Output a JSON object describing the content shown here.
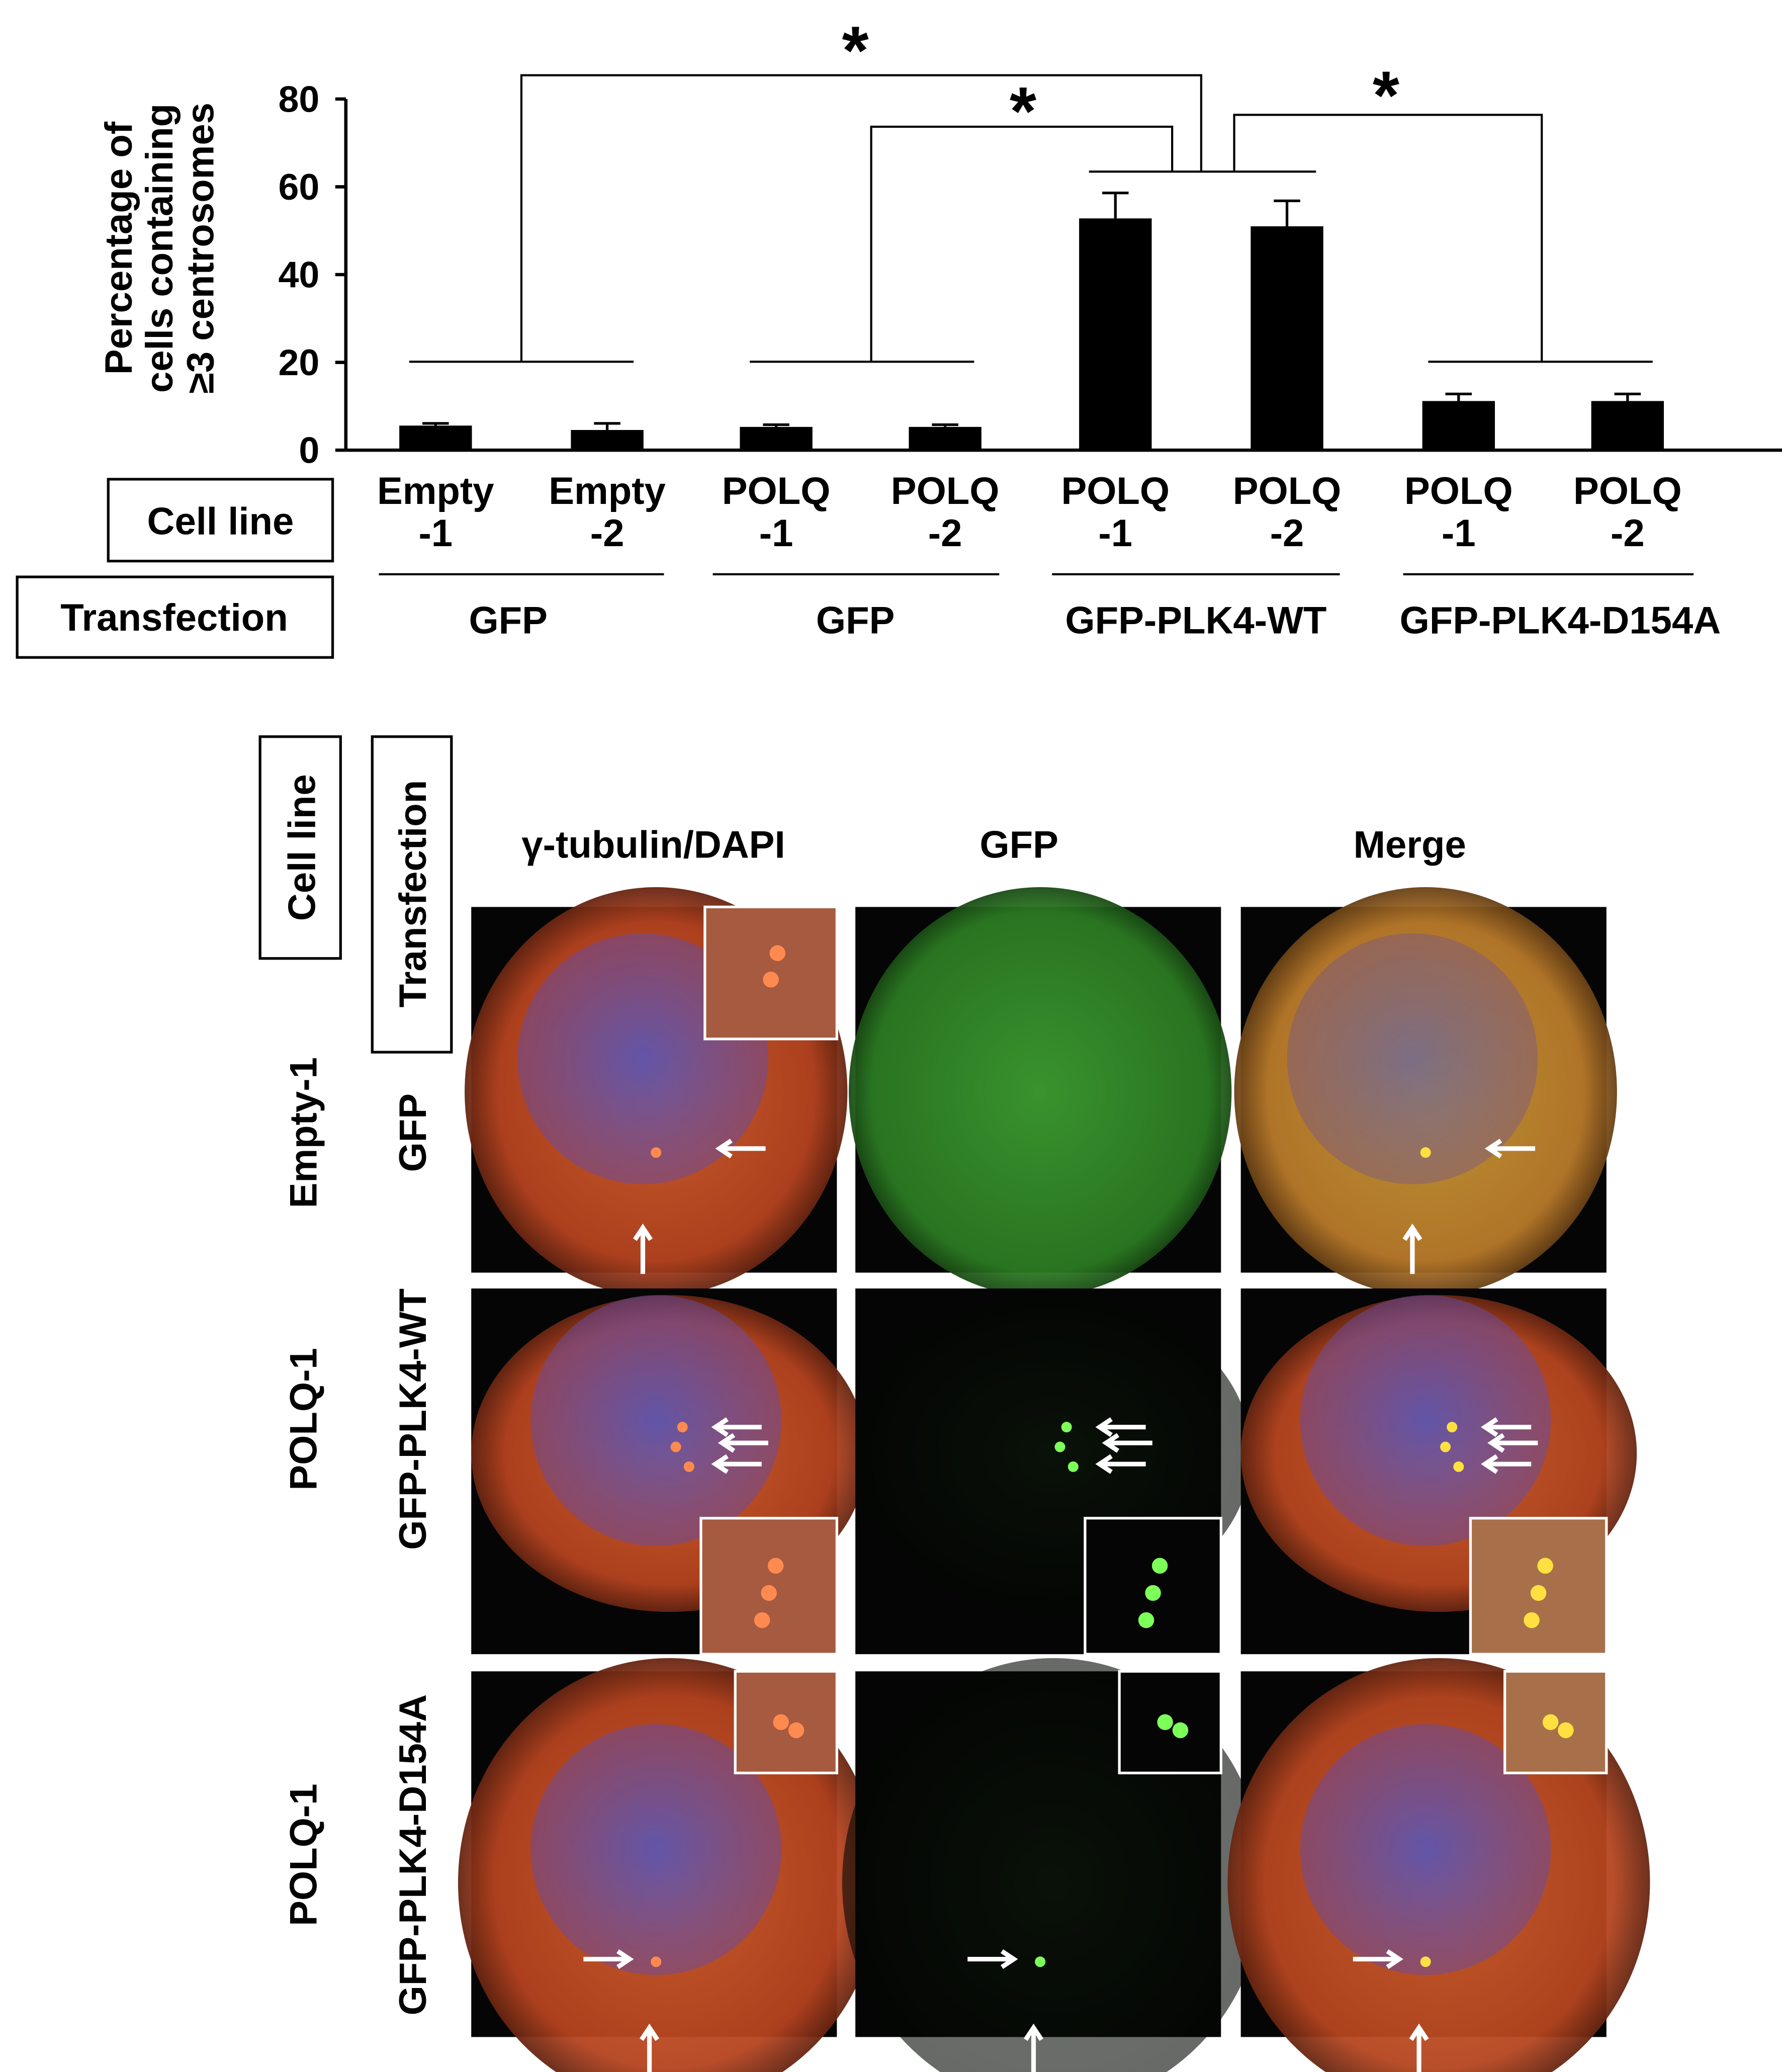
{
  "chart_data": {
    "type": "bar",
    "ylabel": [
      "Percentage of",
      "cells containing",
      "≥3 centrosomes"
    ],
    "categories": [
      [
        "Empty",
        "-1"
      ],
      [
        "Empty",
        "-2"
      ],
      [
        "POLQ",
        "-1"
      ],
      [
        "POLQ",
        "-2"
      ],
      [
        "POLQ",
        "-1"
      ],
      [
        "POLQ",
        "-2"
      ],
      [
        "POLQ",
        "-1"
      ],
      [
        "POLQ",
        "-2"
      ]
    ],
    "values": [
      5.6,
      4.6,
      5.3,
      5.3,
      52.8,
      51,
      11.2,
      11.2
    ],
    "errors": [
      0.5,
      1.5,
      0.5,
      0.5,
      5.8,
      5.8,
      1.6,
      1.6
    ],
    "color": "#000000",
    "ylim": [
      0,
      80
    ],
    "yticks": [
      0,
      20,
      40,
      60,
      80
    ],
    "annotations": [
      "*",
      "*",
      "*"
    ]
  },
  "table": {
    "row_headers": [
      "Cell line",
      "Transfection"
    ],
    "transfection_groups": [
      "GFP",
      "GFP",
      "GFP-PLK4-WT",
      "GFP-PLK4-D154A"
    ]
  },
  "micrographs": {
    "header_boxes": [
      "Cell line",
      "Transfection"
    ],
    "columns": [
      "γ-tubulin/DAPI",
      "GFP",
      "Merge"
    ],
    "rows": [
      {
        "cell_line": "Empty-1",
        "transfection": "GFP"
      },
      {
        "cell_line": "POLQ-1",
        "transfection": "GFP-PLK4-WT"
      },
      {
        "cell_line": "POLQ-1",
        "transfection": "GFP-PLK4-D154A"
      }
    ]
  }
}
